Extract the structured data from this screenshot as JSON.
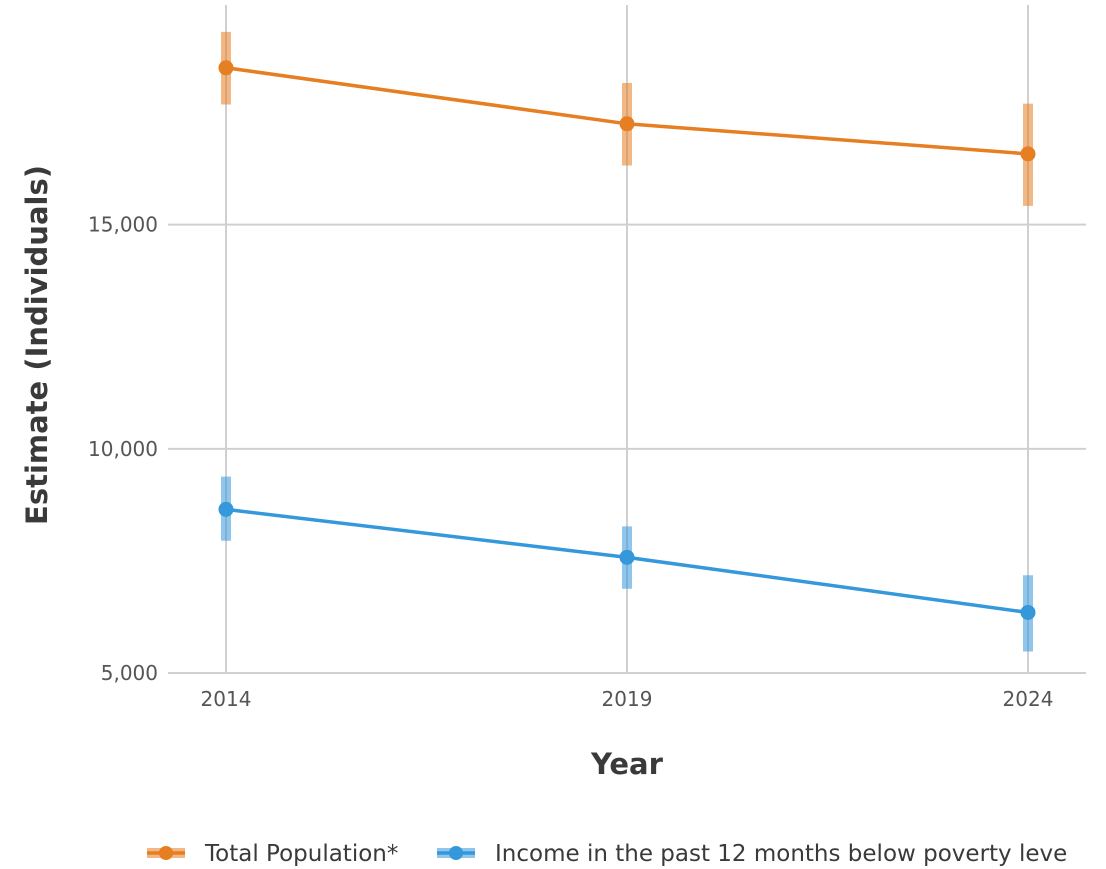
{
  "chart_data": {
    "type": "line",
    "title": "",
    "xlabel": "Year",
    "ylabel": "Estimate (Individuals)",
    "x": [
      2014,
      2019,
      2024
    ],
    "x_tick_labels": [
      "2014",
      "2019",
      "2024"
    ],
    "ylim": [
      5000,
      19900
    ],
    "y_ticks": [
      5000,
      10000,
      15000
    ],
    "y_tick_labels": [
      "5,000",
      "10,000",
      "15,000"
    ],
    "grid": true,
    "legend_position": "bottom",
    "series": [
      {
        "name": "Total Population*",
        "color": "#E67E22",
        "values": [
          18500,
          17250,
          16580
        ],
        "lower": [
          17680,
          16320,
          15420
        ],
        "upper": [
          19300,
          18160,
          17700
        ]
      },
      {
        "name": "Income in the past 12 months below poverty leve",
        "color": "#3498DB",
        "values": [
          8650,
          7580,
          6350
        ],
        "lower": [
          7950,
          6880,
          5480
        ],
        "upper": [
          9380,
          8270,
          7180
        ]
      }
    ]
  }
}
